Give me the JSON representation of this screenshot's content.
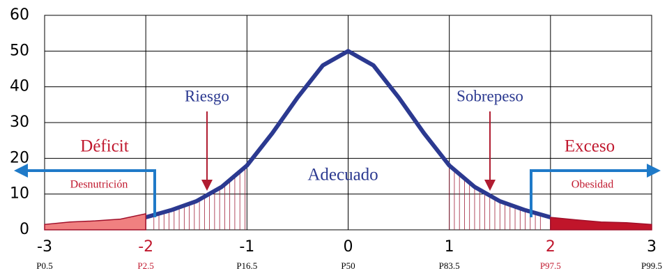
{
  "chart_data": {
    "type": "line",
    "xlim": [
      -3,
      3
    ],
    "xticks": [
      -3,
      -2,
      -1,
      0,
      1,
      2,
      3
    ],
    "xtick_colors": [
      "#000000",
      "#c0182e",
      "#000000",
      "#000000",
      "#000000",
      "#c0182e",
      "#000000"
    ],
    "percentile_labels": [
      "P0.5",
      "P2.5",
      "P16.5",
      "P50",
      "P83.5",
      "P97.5",
      "P99.5"
    ],
    "ylim": [
      0,
      60
    ],
    "yticks": [
      0,
      10,
      20,
      30,
      40,
      50,
      60
    ],
    "grid": true,
    "series": [
      {
        "color": "#2b3990",
        "x": [
          -2,
          -1.75,
          -1.5,
          -1.25,
          -1,
          -0.75,
          -0.5,
          -0.25,
          0,
          0.25,
          0.5,
          0.75,
          1,
          1.25,
          1.5,
          1.75,
          2
        ],
        "values": [
          3.5,
          5.5,
          8,
          12,
          18,
          27,
          37,
          46,
          50,
          46,
          37,
          27,
          18,
          12,
          8,
          5.5,
          3.5
        ]
      },
      {
        "color": "#f08080",
        "x": [
          -3,
          -2.75,
          -2.5,
          -2.25,
          -2
        ],
        "values": [
          1.5,
          2.2,
          2.5,
          3,
          4.5
        ]
      },
      {
        "color": "#c0152a",
        "x": [
          2,
          2.25,
          2.5,
          2.75,
          3
        ],
        "values": [
          3.5,
          2.8,
          2.2,
          2,
          1.5
        ]
      }
    ],
    "annotations": [
      {
        "text": "Riesgo",
        "color": "#2b3990"
      },
      {
        "text": "Sobrepeso",
        "color": "#2b3990"
      },
      {
        "text": "Déficit",
        "color": "#c0182e"
      },
      {
        "text": "Exceso",
        "color": "#c0182e"
      },
      {
        "text": "Adecuado",
        "color": "#2b3990"
      },
      {
        "text": "Desnutrición",
        "color": "#c0182e"
      },
      {
        "text": "Obesidad",
        "color": "#c0182e"
      }
    ]
  }
}
